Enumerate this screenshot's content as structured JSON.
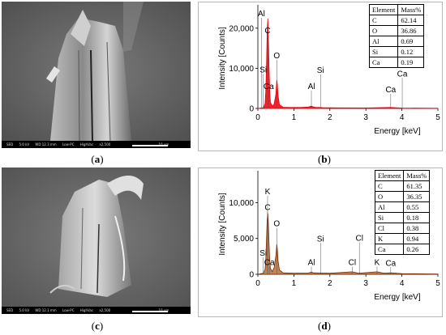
{
  "panels": {
    "a": {
      "caption": "a",
      "sem_info": [
        "SED",
        "5.0 kV",
        "WD 12.3 mm",
        "Low-PC",
        "HighVac",
        "x2,500",
        "10 μm"
      ],
      "sem_info2": [
        "STD",
        "0278"
      ]
    },
    "b": {
      "caption": "b"
    },
    "c": {
      "caption": "c",
      "sem_info": [
        "SED",
        "5.0 kV",
        "WD 12.1 mm",
        "Low-PC",
        "HighVac",
        "x2,500",
        "10 μm"
      ],
      "sem_info2": [
        "STD",
        "0211"
      ]
    },
    "d": {
      "caption": "d"
    }
  },
  "chart_data": [
    {
      "id": "b",
      "type": "line",
      "xlabel": "Energy [keV]",
      "ylabel": "Intensity [Counts]",
      "xlim": [
        0,
        5
      ],
      "ylim": [
        0,
        25000
      ],
      "xticks": [
        0,
        1,
        2,
        3,
        4,
        5
      ],
      "yticks": [
        0,
        10000,
        20000
      ],
      "ytick_labels": [
        "0",
        "10,000",
        "20,000"
      ],
      "line_color": "#e8000b",
      "fill_color": "#e8000b",
      "spectrum": {
        "x": [
          0.0,
          0.15,
          0.2,
          0.22,
          0.24,
          0.26,
          0.277,
          0.29,
          0.31,
          0.33,
          0.35,
          0.4,
          0.45,
          0.5,
          0.52,
          0.525,
          0.54,
          0.56,
          0.6,
          0.7,
          0.9,
          1.2,
          1.4,
          1.45,
          1.487,
          1.52,
          1.6,
          1.74,
          1.8,
          2.2,
          3.0,
          3.69,
          4.0,
          5.0
        ],
        "y": [
          0,
          200,
          1200,
          4500,
          11000,
          19000,
          22400,
          18500,
          10000,
          3800,
          1500,
          600,
          1000,
          3500,
          6200,
          7100,
          6000,
          3200,
          900,
          300,
          250,
          250,
          350,
          500,
          600,
          450,
          250,
          250,
          200,
          150,
          120,
          250,
          100,
          50
        ]
      },
      "peak_labels": [
        {
          "text": "Al",
          "x": 0.1,
          "y": 23000
        },
        {
          "text": "C",
          "x": 0.27,
          "y": 18800
        },
        {
          "text": "O",
          "x": 0.525,
          "y": 12500
        },
        {
          "text": "Si",
          "x": 0.15,
          "y": 9000
        },
        {
          "text": "Ca",
          "x": 0.3,
          "y": 4800
        },
        {
          "text": "Al",
          "x": 1.487,
          "y": 4800
        },
        {
          "text": "Si",
          "x": 1.74,
          "y": 8900
        },
        {
          "text": "Ca",
          "x": 3.69,
          "y": 4000
        },
        {
          "text": "Ca",
          "x": 4.01,
          "y": 8000
        }
      ],
      "table": {
        "headers": [
          "Element",
          "Mass%"
        ],
        "rows": [
          [
            "C",
            "62.14"
          ],
          [
            "O",
            "36.86"
          ],
          [
            "Al",
            "0.69"
          ],
          [
            "Si",
            "0.12"
          ],
          [
            "Ca",
            "0.19"
          ]
        ]
      }
    },
    {
      "id": "d",
      "type": "line",
      "xlabel": "Energy [keV]",
      "ylabel": "Intensity [Counts]",
      "xlim": [
        0,
        5
      ],
      "ylim": [
        0,
        14000
      ],
      "xticks": [
        0,
        1,
        2,
        3,
        4,
        5
      ],
      "yticks": [
        0,
        5000,
        10000
      ],
      "ytick_labels": [
        "0",
        "5,000",
        "10,000"
      ],
      "line_color": "#7a2a00",
      "fill_color": "#b07040",
      "spectrum": {
        "x": [
          0.0,
          0.15,
          0.2,
          0.22,
          0.24,
          0.26,
          0.277,
          0.29,
          0.31,
          0.33,
          0.35,
          0.4,
          0.45,
          0.5,
          0.52,
          0.525,
          0.54,
          0.56,
          0.6,
          0.7,
          1.0,
          1.4,
          1.487,
          1.55,
          1.74,
          2.0,
          2.62,
          2.8,
          3.31,
          3.5,
          3.69,
          4.0,
          5.0
        ],
        "y": [
          0,
          150,
          700,
          2200,
          5000,
          7600,
          8500,
          7400,
          4200,
          1800,
          800,
          400,
          900,
          2600,
          3800,
          4200,
          3500,
          1900,
          600,
          200,
          150,
          180,
          300,
          200,
          180,
          150,
          350,
          150,
          350,
          150,
          200,
          100,
          50
        ]
      },
      "peak_labels": [
        {
          "text": "K",
          "x": 0.27,
          "y": 11200
        },
        {
          "text": "C",
          "x": 0.27,
          "y": 9000
        },
        {
          "text": "O",
          "x": 0.525,
          "y": 6700
        },
        {
          "text": "Si",
          "x": 0.15,
          "y": 2600
        },
        {
          "text": "Ca",
          "x": 0.32,
          "y": 1300
        },
        {
          "text": "Al",
          "x": 1.487,
          "y": 1300
        },
        {
          "text": "Si",
          "x": 1.74,
          "y": 4600
        },
        {
          "text": "Cl",
          "x": 2.62,
          "y": 1300
        },
        {
          "text": "Cl",
          "x": 2.82,
          "y": 4700
        },
        {
          "text": "K",
          "x": 3.31,
          "y": 1300
        },
        {
          "text": "Ca",
          "x": 3.69,
          "y": 1200
        }
      ],
      "table": {
        "headers": [
          "Element",
          "Mass%"
        ],
        "rows": [
          [
            "C",
            "61.35"
          ],
          [
            "O",
            "36.35"
          ],
          [
            "Al",
            "0.55"
          ],
          [
            "Si",
            "0.18"
          ],
          [
            "Cl",
            "0.38"
          ],
          [
            "K",
            "0.94"
          ],
          [
            "Ca",
            "0.26"
          ]
        ]
      }
    }
  ]
}
